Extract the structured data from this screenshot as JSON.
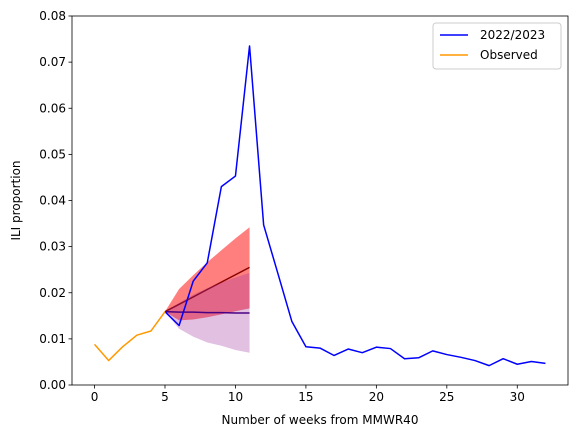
{
  "chart_data": {
    "type": "line",
    "title": "",
    "xlabel": "Number of weeks from MMWR40",
    "ylabel": "ILI proportion",
    "xlim": [
      -1.6,
      33.6
    ],
    "ylim": [
      0,
      0.08
    ],
    "x_ticks": [
      0,
      5,
      10,
      15,
      20,
      25,
      30
    ],
    "x_tick_labels": [
      "0",
      "5",
      "10",
      "15",
      "20",
      "25",
      "30"
    ],
    "y_ticks": [
      0,
      0.01,
      0.02,
      0.03,
      0.04,
      0.05,
      0.06,
      0.07,
      0.08
    ],
    "y_tick_labels": [
      "0.00",
      "0.01",
      "0.02",
      "0.03",
      "0.04",
      "0.05",
      "0.06",
      "0.07",
      "0.08"
    ],
    "grid": false,
    "legend_position": "top-right",
    "series": [
      {
        "name": "2022/2023",
        "color": "#0000ff",
        "x": [
          5,
          6,
          7,
          8,
          9,
          10,
          11,
          12,
          13,
          14,
          15,
          16,
          17,
          18,
          19,
          20,
          21,
          22,
          23,
          24,
          25,
          26,
          27,
          28,
          29,
          30,
          31,
          32
        ],
        "y": [
          0.0159,
          0.0129,
          0.0225,
          0.0265,
          0.043,
          0.0453,
          0.0735,
          0.0347,
          0.0243,
          0.0138,
          0.0083,
          0.008,
          0.0064,
          0.0078,
          0.007,
          0.0082,
          0.0079,
          0.0057,
          0.0059,
          0.0074,
          0.0066,
          0.006,
          0.0053,
          0.0042,
          0.0057,
          0.0045,
          0.0051,
          0.0047
        ]
      },
      {
        "name": "Observed",
        "color": "#ff9900",
        "x": [
          0,
          1,
          2,
          3,
          4,
          5
        ],
        "y": [
          0.0088,
          0.0053,
          0.0083,
          0.0108,
          0.0117,
          0.0159
        ]
      }
    ],
    "forecast_bands": [
      {
        "color": "#ff0000",
        "line_color": "#8b0000",
        "x": [
          5,
          6,
          7,
          8,
          9,
          10,
          11
        ],
        "median": [
          0.0159,
          0.0175,
          0.0191,
          0.0207,
          0.0223,
          0.0239,
          0.0255
        ],
        "lower": [
          0.0159,
          0.014,
          0.0142,
          0.0147,
          0.0153,
          0.016,
          0.0166
        ],
        "upper": [
          0.0159,
          0.0208,
          0.0238,
          0.0266,
          0.0292,
          0.0318,
          0.0342
        ]
      },
      {
        "color": "#9b30a0",
        "line_color": "#4b0082",
        "x": [
          5,
          6,
          7,
          8,
          9,
          10,
          11
        ],
        "median": [
          0.0159,
          0.0158,
          0.0158,
          0.0157,
          0.0157,
          0.0156,
          0.0156
        ],
        "lower": [
          0.0159,
          0.0122,
          0.0105,
          0.0092,
          0.0085,
          0.0076,
          0.007
        ],
        "upper": [
          0.0159,
          0.0178,
          0.0196,
          0.021,
          0.0222,
          0.0233,
          0.0243
        ]
      }
    ]
  }
}
